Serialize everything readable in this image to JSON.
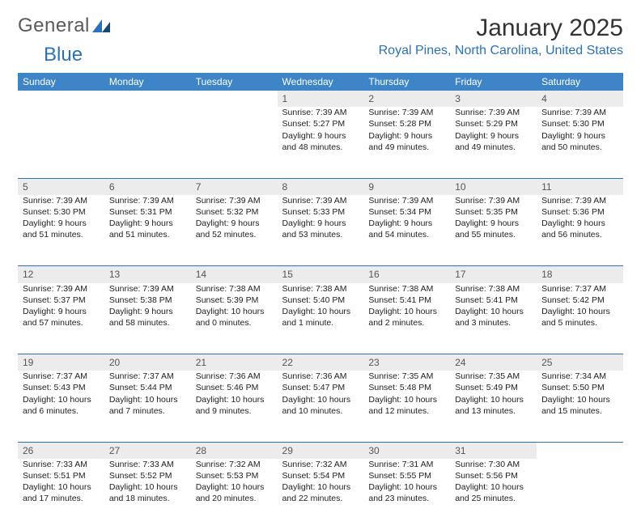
{
  "logo": {
    "word1": "General",
    "word2": "Blue",
    "triColor": "#2a72b5"
  },
  "title": "January 2025",
  "location": "Royal Pines, North Carolina, United States",
  "colors": {
    "headerBg": "#3d85c6",
    "headerText": "#ffffff",
    "dayNumBg": "#ececec",
    "dayNumText": "#555555",
    "rowBorder": "#2a72b5",
    "accent": "#2a72b5"
  },
  "weekdays": [
    "Sunday",
    "Monday",
    "Tuesday",
    "Wednesday",
    "Thursday",
    "Friday",
    "Saturday"
  ],
  "weeks": [
    [
      null,
      null,
      null,
      {
        "n": "1",
        "sr": "7:39 AM",
        "ss": "5:27 PM",
        "dl": "9 hours and 48 minutes."
      },
      {
        "n": "2",
        "sr": "7:39 AM",
        "ss": "5:28 PM",
        "dl": "9 hours and 49 minutes."
      },
      {
        "n": "3",
        "sr": "7:39 AM",
        "ss": "5:29 PM",
        "dl": "9 hours and 49 minutes."
      },
      {
        "n": "4",
        "sr": "7:39 AM",
        "ss": "5:30 PM",
        "dl": "9 hours and 50 minutes."
      }
    ],
    [
      {
        "n": "5",
        "sr": "7:39 AM",
        "ss": "5:30 PM",
        "dl": "9 hours and 51 minutes."
      },
      {
        "n": "6",
        "sr": "7:39 AM",
        "ss": "5:31 PM",
        "dl": "9 hours and 51 minutes."
      },
      {
        "n": "7",
        "sr": "7:39 AM",
        "ss": "5:32 PM",
        "dl": "9 hours and 52 minutes."
      },
      {
        "n": "8",
        "sr": "7:39 AM",
        "ss": "5:33 PM",
        "dl": "9 hours and 53 minutes."
      },
      {
        "n": "9",
        "sr": "7:39 AM",
        "ss": "5:34 PM",
        "dl": "9 hours and 54 minutes."
      },
      {
        "n": "10",
        "sr": "7:39 AM",
        "ss": "5:35 PM",
        "dl": "9 hours and 55 minutes."
      },
      {
        "n": "11",
        "sr": "7:39 AM",
        "ss": "5:36 PM",
        "dl": "9 hours and 56 minutes."
      }
    ],
    [
      {
        "n": "12",
        "sr": "7:39 AM",
        "ss": "5:37 PM",
        "dl": "9 hours and 57 minutes."
      },
      {
        "n": "13",
        "sr": "7:39 AM",
        "ss": "5:38 PM",
        "dl": "9 hours and 58 minutes."
      },
      {
        "n": "14",
        "sr": "7:38 AM",
        "ss": "5:39 PM",
        "dl": "10 hours and 0 minutes."
      },
      {
        "n": "15",
        "sr": "7:38 AM",
        "ss": "5:40 PM",
        "dl": "10 hours and 1 minute."
      },
      {
        "n": "16",
        "sr": "7:38 AM",
        "ss": "5:41 PM",
        "dl": "10 hours and 2 minutes."
      },
      {
        "n": "17",
        "sr": "7:38 AM",
        "ss": "5:41 PM",
        "dl": "10 hours and 3 minutes."
      },
      {
        "n": "18",
        "sr": "7:37 AM",
        "ss": "5:42 PM",
        "dl": "10 hours and 5 minutes."
      }
    ],
    [
      {
        "n": "19",
        "sr": "7:37 AM",
        "ss": "5:43 PM",
        "dl": "10 hours and 6 minutes."
      },
      {
        "n": "20",
        "sr": "7:37 AM",
        "ss": "5:44 PM",
        "dl": "10 hours and 7 minutes."
      },
      {
        "n": "21",
        "sr": "7:36 AM",
        "ss": "5:46 PM",
        "dl": "10 hours and 9 minutes."
      },
      {
        "n": "22",
        "sr": "7:36 AM",
        "ss": "5:47 PM",
        "dl": "10 hours and 10 minutes."
      },
      {
        "n": "23",
        "sr": "7:35 AM",
        "ss": "5:48 PM",
        "dl": "10 hours and 12 minutes."
      },
      {
        "n": "24",
        "sr": "7:35 AM",
        "ss": "5:49 PM",
        "dl": "10 hours and 13 minutes."
      },
      {
        "n": "25",
        "sr": "7:34 AM",
        "ss": "5:50 PM",
        "dl": "10 hours and 15 minutes."
      }
    ],
    [
      {
        "n": "26",
        "sr": "7:33 AM",
        "ss": "5:51 PM",
        "dl": "10 hours and 17 minutes."
      },
      {
        "n": "27",
        "sr": "7:33 AM",
        "ss": "5:52 PM",
        "dl": "10 hours and 18 minutes."
      },
      {
        "n": "28",
        "sr": "7:32 AM",
        "ss": "5:53 PM",
        "dl": "10 hours and 20 minutes."
      },
      {
        "n": "29",
        "sr": "7:32 AM",
        "ss": "5:54 PM",
        "dl": "10 hours and 22 minutes."
      },
      {
        "n": "30",
        "sr": "7:31 AM",
        "ss": "5:55 PM",
        "dl": "10 hours and 23 minutes."
      },
      {
        "n": "31",
        "sr": "7:30 AM",
        "ss": "5:56 PM",
        "dl": "10 hours and 25 minutes."
      },
      null
    ]
  ],
  "labels": {
    "sunrise": "Sunrise:",
    "sunset": "Sunset:",
    "daylight": "Daylight:"
  }
}
